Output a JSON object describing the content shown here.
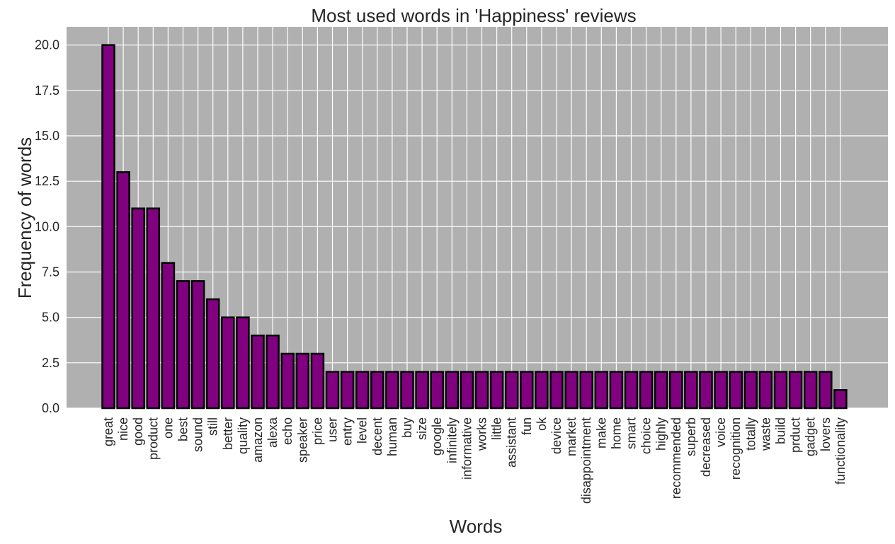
{
  "chart_data": {
    "type": "bar",
    "title": "Most used words in 'Happiness' reviews",
    "xlabel": "Words",
    "ylabel": "Frequency of words",
    "ylim": [
      0,
      21
    ],
    "yticks": [
      "0.0",
      "2.5",
      "5.0",
      "7.5",
      "10.0",
      "12.5",
      "15.0",
      "17.5",
      "20.0"
    ],
    "grid": true,
    "categories": [
      "great",
      "nice",
      "good",
      "product",
      "one",
      "best",
      "sound",
      "still",
      "better",
      "quality",
      "amazon",
      "alexa",
      "echo",
      "speaker",
      "price",
      "user",
      "entry",
      "level",
      "decent",
      "human",
      "buy",
      "size",
      "google",
      "infinitely",
      "informative",
      "works",
      "little",
      "assistant",
      "fun",
      "ok",
      "device",
      "market",
      "disappointment",
      "make",
      "home",
      "smart",
      "choice",
      "highly",
      "recommended",
      "superb",
      "decreased",
      "voice",
      "recognition",
      "totally",
      "waste",
      "build",
      "prduct",
      "gadget",
      "lovers",
      "functionality"
    ],
    "values": [
      20,
      13,
      11,
      11,
      8,
      7,
      7,
      6,
      5,
      5,
      4,
      4,
      3,
      3,
      3,
      2,
      2,
      2,
      2,
      2,
      2,
      2,
      2,
      2,
      2,
      2,
      2,
      2,
      2,
      2,
      2,
      2,
      2,
      2,
      2,
      2,
      2,
      2,
      2,
      2,
      2,
      2,
      2,
      2,
      2,
      2,
      2,
      2,
      2,
      1
    ],
    "colors": {
      "bar_fill": "#800080",
      "bar_edge": "#000000",
      "plot_background": "#b0b0b0",
      "grid": "#ffffff"
    }
  }
}
